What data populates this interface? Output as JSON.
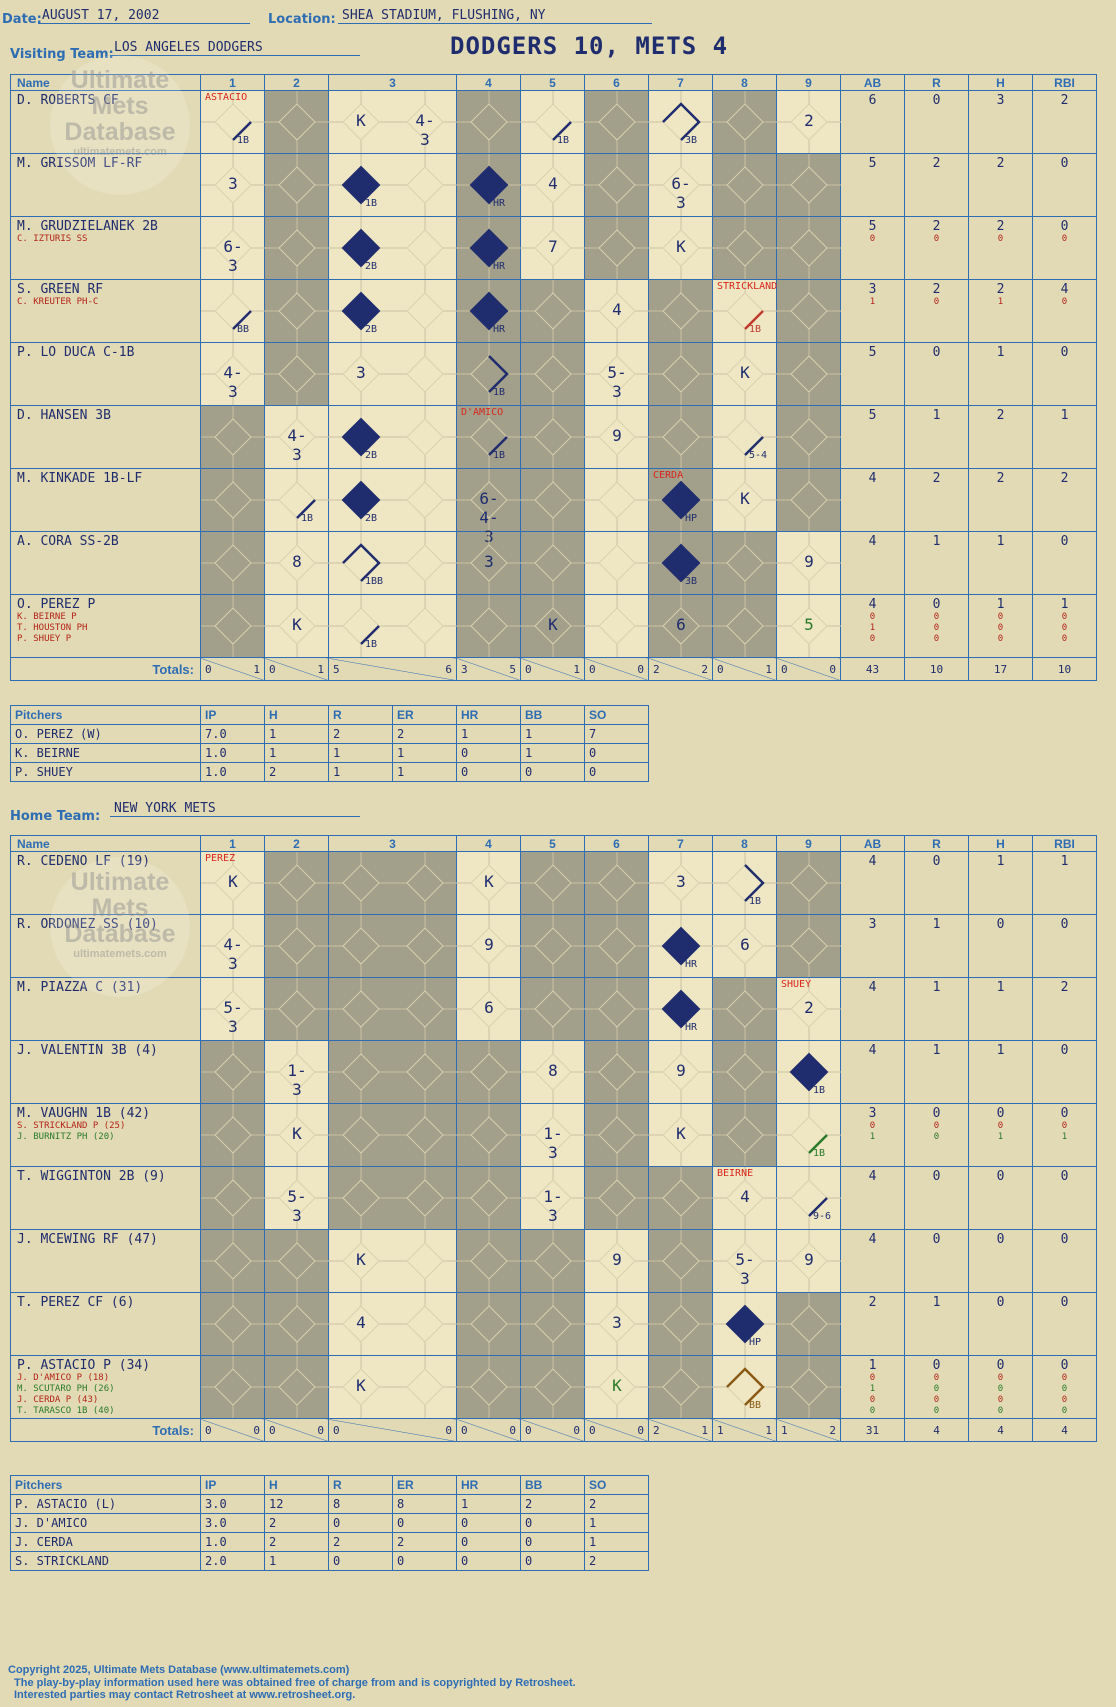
{
  "header": {
    "date_label": "Date:",
    "date": "AUGUST 17, 2002",
    "location_label": "Location:",
    "location": "SHEA STADIUM, FLUSHING, NY",
    "visiting_label": "Visiting Team:",
    "visiting_team": "LOS ANGELES DODGERS",
    "result": "DODGERS 10, METS 4",
    "home_label": "Home Team:",
    "home_team": "NEW YORK METS"
  },
  "columns": {
    "name": "Name",
    "innings": [
      "1",
      "2",
      "3",
      "4",
      "5",
      "6",
      "7",
      "8",
      "9"
    ],
    "stats": [
      "AB",
      "R",
      "H",
      "RBI"
    ],
    "totals_label": "Totals:",
    "r_label": "R",
    "h_label": "H"
  },
  "watermark": {
    "line1": "Ultimate",
    "line2": "Mets",
    "line3": "Database",
    "url": "ultimatemets.com"
  },
  "visitors": {
    "rows": [
      {
        "name": "D. ROBERTS CF",
        "subs": [],
        "ab": "6",
        "r": "0",
        "h": "3",
        "rbi": "2",
        "sub_stats": []
      },
      {
        "name": "M. GRISSOM LF-RF",
        "subs": [],
        "ab": "5",
        "r": "2",
        "h": "2",
        "rbi": "0",
        "sub_stats": []
      },
      {
        "name": "M. GRUDZIELANEK 2B",
        "subs": [
          "C. IZTURIS SS"
        ],
        "ab": "5",
        "r": "2",
        "h": "2",
        "rbi": "0",
        "sub_stats": [
          [
            "0",
            "0",
            "0",
            "0"
          ]
        ]
      },
      {
        "name": "S. GREEN RF",
        "subs": [
          "C. KREUTER PH-C"
        ],
        "ab": "3",
        "r": "2",
        "h": "2",
        "rbi": "4",
        "sub_stats": [
          [
            "1",
            "0",
            "1",
            "0"
          ]
        ]
      },
      {
        "name": "P. LO DUCA C-1B",
        "subs": [],
        "ab": "5",
        "r": "0",
        "h": "1",
        "rbi": "0",
        "sub_stats": []
      },
      {
        "name": "D. HANSEN 3B",
        "subs": [],
        "ab": "5",
        "r": "1",
        "h": "2",
        "rbi": "1",
        "sub_stats": []
      },
      {
        "name": "M. KINKADE 1B-LF",
        "subs": [],
        "ab": "4",
        "r": "2",
        "h": "2",
        "rbi": "2",
        "sub_stats": []
      },
      {
        "name": "A. CORA SS-2B",
        "subs": [],
        "ab": "4",
        "r": "1",
        "h": "1",
        "rbi": "0",
        "sub_stats": []
      },
      {
        "name": "O. PEREZ P",
        "subs": [
          "K. BEIRNE P",
          "T. HOUSTON PH",
          "P. SHUEY P"
        ],
        "ab": "4",
        "r": "0",
        "h": "1",
        "rbi": "1",
        "sub_stats": [
          [
            "0",
            "0",
            "0",
            "0"
          ],
          [
            "1",
            "0",
            "0",
            "0"
          ],
          [
            "0",
            "0",
            "0",
            "0"
          ]
        ]
      }
    ],
    "totals": {
      "innings": [
        [
          "0",
          "1"
        ],
        [
          "0",
          "1"
        ],
        [
          "5",
          "6"
        ],
        [
          "3",
          "5"
        ],
        [
          "0",
          "1"
        ],
        [
          "0",
          "0"
        ],
        [
          "2",
          "2"
        ],
        [
          "0",
          "1"
        ],
        [
          "0",
          "0"
        ]
      ],
      "ab": "43",
      "r": "10",
      "h": "17",
      "rbi": "10"
    },
    "pitchers_header": [
      "Pitchers",
      "IP",
      "H",
      "R",
      "ER",
      "HR",
      "BB",
      "SO"
    ],
    "pitchers": [
      [
        "O. PEREZ (W)",
        "7.0",
        "1",
        "2",
        "2",
        "1",
        "1",
        "7"
      ],
      [
        "K. BEIRNE",
        "1.0",
        "1",
        "1",
        "1",
        "0",
        "1",
        "0"
      ],
      [
        "P. SHUEY",
        "1.0",
        "2",
        "1",
        "1",
        "0",
        "0",
        "0"
      ]
    ]
  },
  "home": {
    "rows": [
      {
        "name": "R. CEDENO LF (19)",
        "subs": [],
        "ab": "4",
        "r": "0",
        "h": "1",
        "rbi": "1",
        "sub_stats": []
      },
      {
        "name": "R. ORDONEZ SS (10)",
        "subs": [],
        "ab": "3",
        "r": "1",
        "h": "0",
        "rbi": "0",
        "sub_stats": []
      },
      {
        "name": "M. PIAZZA C (31)",
        "subs": [],
        "ab": "4",
        "r": "1",
        "h": "1",
        "rbi": "2",
        "sub_stats": []
      },
      {
        "name": "J. VALENTIN 3B (4)",
        "subs": [],
        "ab": "4",
        "r": "1",
        "h": "1",
        "rbi": "0",
        "sub_stats": []
      },
      {
        "name": "M. VAUGHN 1B (42)",
        "subs": [
          "S. STRICKLAND P (25)",
          "J. BURNITZ PH (20)"
        ],
        "ab": "3",
        "r": "0",
        "h": "0",
        "rbi": "0",
        "sub_stats": [
          [
            "0",
            "0",
            "0",
            "0"
          ],
          [
            "1",
            "0",
            "1",
            "1"
          ]
        ]
      },
      {
        "name": "T. WIGGINTON 2B (9)",
        "subs": [],
        "ab": "4",
        "r": "0",
        "h": "0",
        "rbi": "0",
        "sub_stats": []
      },
      {
        "name": "J. MCEWING RF (47)",
        "subs": [],
        "ab": "4",
        "r": "0",
        "h": "0",
        "rbi": "0",
        "sub_stats": []
      },
      {
        "name": "T. PEREZ CF (6)",
        "subs": [],
        "ab": "2",
        "r": "1",
        "h": "0",
        "rbi": "0",
        "sub_stats": []
      },
      {
        "name": "P. ASTACIO P (34)",
        "subs": [
          "J. D'AMICO P (18)",
          "M. SCUTARO PH (26)",
          "J. CERDA P (43)",
          "T. TARASCO 1B (40)"
        ],
        "ab": "1",
        "r": "0",
        "h": "0",
        "rbi": "0",
        "sub_stats": [
          [
            "0",
            "0",
            "0",
            "0"
          ],
          [
            "1",
            "0",
            "0",
            "0"
          ],
          [
            "0",
            "0",
            "0",
            "0"
          ],
          [
            "0",
            "0",
            "0",
            "0"
          ]
        ]
      }
    ],
    "totals": {
      "innings": [
        [
          "0",
          "0"
        ],
        [
          "0",
          "0"
        ],
        [
          "0",
          "0"
        ],
        [
          "0",
          "0"
        ],
        [
          "0",
          "0"
        ],
        [
          "0",
          "0"
        ],
        [
          "2",
          "1"
        ],
        [
          "1",
          "1"
        ],
        [
          "1",
          "2"
        ]
      ],
      "ab": "31",
      "r": "4",
      "h": "4",
      "rbi": "4"
    },
    "pitchers_header": [
      "Pitchers",
      "IP",
      "H",
      "R",
      "ER",
      "HR",
      "BB",
      "SO"
    ],
    "pitchers": [
      [
        "P. ASTACIO (L)",
        "3.0",
        "12",
        "8",
        "8",
        "1",
        "2",
        "2"
      ],
      [
        "J. D'AMICO",
        "3.0",
        "2",
        "0",
        "0",
        "0",
        "0",
        "1"
      ],
      [
        "J. CERDA",
        "1.0",
        "2",
        "2",
        "2",
        "0",
        "0",
        "1"
      ],
      [
        "S. STRICKLAND",
        "2.0",
        "1",
        "0",
        "0",
        "0",
        "0",
        "2"
      ]
    ]
  },
  "visitor_plays": [
    {
      "r": 0,
      "i": 1,
      "t": "1B",
      "path": 1,
      "mark": "ASTACIO"
    },
    {
      "r": 0,
      "i": 3,
      "t": "K"
    },
    {
      "r": 0,
      "i": 3,
      "t": "4-3",
      "col": "3b"
    },
    {
      "r": 0,
      "i": 5,
      "t": "1B",
      "path": 1
    },
    {
      "r": 0,
      "i": 7,
      "t": "3B",
      "path": 3
    },
    {
      "r": 0,
      "i": 9,
      "t": "2"
    },
    {
      "r": 1,
      "i": 1,
      "t": "3"
    },
    {
      "r": 1,
      "i": 3,
      "t": "1B",
      "run": 1
    },
    {
      "r": 1,
      "i": 4,
      "t": "HR",
      "run": 1
    },
    {
      "r": 1,
      "i": 5,
      "t": "4"
    },
    {
      "r": 1,
      "i": 7,
      "t": "6-3"
    },
    {
      "r": 2,
      "i": 1,
      "t": "6-3"
    },
    {
      "r": 2,
      "i": 3,
      "t": "2B",
      "run": 1
    },
    {
      "r": 2,
      "i": 4,
      "t": "HR",
      "run": 1
    },
    {
      "r": 2,
      "i": 5,
      "t": "7"
    },
    {
      "r": 2,
      "i": 7,
      "t": "K"
    },
    {
      "r": 3,
      "i": 1,
      "t": "BB",
      "path": 1
    },
    {
      "r": 3,
      "i": 3,
      "t": "2B",
      "run": 1
    },
    {
      "r": 3,
      "i": 4,
      "t": "HR",
      "run": 1
    },
    {
      "r": 3,
      "i": 6,
      "t": "4"
    },
    {
      "r": 3,
      "i": 8,
      "t": "1B",
      "path": 1,
      "red": true,
      "mark": "STRICKLAND"
    },
    {
      "r": 4,
      "i": 1,
      "t": "4-3"
    },
    {
      "r": 4,
      "i": 3,
      "t": "3"
    },
    {
      "r": 4,
      "i": 4,
      "t": "1B",
      "path": 2
    },
    {
      "r": 4,
      "i": 6,
      "t": "5-3"
    },
    {
      "r": 4,
      "i": 8,
      "t": "K"
    },
    {
      "r": 5,
      "i": 2,
      "t": "4-3"
    },
    {
      "r": 5,
      "i": 3,
      "t": "2B",
      "run": 1
    },
    {
      "r": 5,
      "i": 4,
      "t": "1B",
      "path": 1,
      "mark": "D'AMICO"
    },
    {
      "r": 5,
      "i": 6,
      "t": "9"
    },
    {
      "r": 5,
      "i": 8,
      "t": "5-4",
      "path": 1
    },
    {
      "r": 6,
      "i": 2,
      "t": "1B",
      "path": 1
    },
    {
      "r": 6,
      "i": 3,
      "t": "2B",
      "run": 1
    },
    {
      "r": 6,
      "i": 4,
      "t": "6-4-3"
    },
    {
      "r": 6,
      "i": 7,
      "t": "HP",
      "run": 1,
      "mark": "CERDA"
    },
    {
      "r": 6,
      "i": 8,
      "t": "K"
    },
    {
      "r": 7,
      "i": 2,
      "t": "8"
    },
    {
      "r": 7,
      "i": 3,
      "t": "1BB",
      "path": 3
    },
    {
      "r": 7,
      "i": 4,
      "t": "3"
    },
    {
      "r": 7,
      "i": 7,
      "t": "3B",
      "run": 1
    },
    {
      "r": 7,
      "i": 9,
      "t": "9"
    },
    {
      "r": 8,
      "i": 2,
      "t": "K"
    },
    {
      "r": 8,
      "i": 3,
      "t": "1B",
      "path": 1
    },
    {
      "r": 8,
      "i": 5,
      "t": "K"
    },
    {
      "r": 8,
      "i": 7,
      "t": "6"
    },
    {
      "r": 8,
      "i": 9,
      "t": "5",
      "green": true
    }
  ],
  "home_plays": [
    {
      "r": 0,
      "i": 1,
      "t": "K",
      "mark": "PEREZ"
    },
    {
      "r": 0,
      "i": 4,
      "t": "K"
    },
    {
      "r": 0,
      "i": 7,
      "t": "3"
    },
    {
      "r": 0,
      "i": 8,
      "t": "1B",
      "path": 2
    },
    {
      "r": 1,
      "i": 1,
      "t": "4-3"
    },
    {
      "r": 1,
      "i": 4,
      "t": "9"
    },
    {
      "r": 1,
      "i": 7,
      "t": "HR",
      "run": 1
    },
    {
      "r": 1,
      "i": 8,
      "t": "6"
    },
    {
      "r": 2,
      "i": 1,
      "t": "5-3"
    },
    {
      "r": 2,
      "i": 4,
      "t": "6"
    },
    {
      "r": 2,
      "i": 7,
      "t": "HR",
      "run": 1
    },
    {
      "r": 2,
      "i": 9,
      "t": "2",
      "mark": "SHUEY"
    },
    {
      "r": 3,
      "i": 2,
      "t": "1-3"
    },
    {
      "r": 3,
      "i": 5,
      "t": "8"
    },
    {
      "r": 3,
      "i": 7,
      "t": "9"
    },
    {
      "r": 3,
      "i": 9,
      "t": "1B",
      "run": 1
    },
    {
      "r": 4,
      "i": 2,
      "t": "K"
    },
    {
      "r": 4,
      "i": 5,
      "t": "1-3"
    },
    {
      "r": 4,
      "i": 7,
      "t": "K"
    },
    {
      "r": 4,
      "i": 9,
      "t": "1B",
      "path": 1,
      "green": true
    },
    {
      "r": 5,
      "i": 2,
      "t": "5-3"
    },
    {
      "r": 5,
      "i": 5,
      "t": "1-3"
    },
    {
      "r": 5,
      "i": 8,
      "t": "4",
      "mark": "BEIRNE"
    },
    {
      "r": 5,
      "i": 9,
      "t": "9-6",
      "path": 1
    },
    {
      "r": 6,
      "i": 3,
      "t": "K"
    },
    {
      "r": 6,
      "i": 6,
      "t": "9"
    },
    {
      "r": 6,
      "i": 8,
      "t": "5-3"
    },
    {
      "r": 6,
      "i": 9,
      "t": "9"
    },
    {
      "r": 7,
      "i": 3,
      "t": "4"
    },
    {
      "r": 7,
      "i": 6,
      "t": "3"
    },
    {
      "r": 7,
      "i": 8,
      "t": "HP",
      "run": 1
    },
    {
      "r": 8,
      "i": 3,
      "t": "K"
    },
    {
      "r": 8,
      "i": 6,
      "t": "K",
      "green": true
    },
    {
      "r": 8,
      "i": 8,
      "t": "BB",
      "path": 3,
      "brown": true
    }
  ],
  "visitor_dark": [
    [
      0,
      1,
      0,
      1,
      0,
      1,
      0,
      1,
      0
    ],
    [
      0,
      1,
      0,
      1,
      0,
      1,
      0,
      1,
      1
    ],
    [
      0,
      1,
      0,
      1,
      0,
      1,
      0,
      1,
      1
    ],
    [
      0,
      1,
      0,
      1,
      1,
      0,
      1,
      0,
      1
    ],
    [
      0,
      1,
      0,
      1,
      1,
      0,
      1,
      0,
      1
    ],
    [
      1,
      0,
      0,
      1,
      1,
      0,
      1,
      0,
      1
    ],
    [
      1,
      0,
      0,
      1,
      1,
      0,
      1,
      0,
      1
    ],
    [
      1,
      0,
      0,
      1,
      1,
      0,
      1,
      1,
      0
    ],
    [
      1,
      0,
      0,
      1,
      1,
      0,
      1,
      1,
      0
    ]
  ],
  "home_dark": [
    [
      0,
      1,
      1,
      0,
      1,
      1,
      0,
      0,
      1
    ],
    [
      0,
      1,
      1,
      0,
      1,
      1,
      0,
      0,
      1
    ],
    [
      0,
      1,
      1,
      0,
      1,
      1,
      0,
      1,
      0
    ],
    [
      1,
      0,
      1,
      1,
      0,
      1,
      0,
      1,
      0
    ],
    [
      1,
      0,
      1,
      1,
      0,
      1,
      0,
      1,
      0
    ],
    [
      1,
      0,
      1,
      1,
      0,
      1,
      1,
      0,
      0
    ],
    [
      1,
      1,
      0,
      1,
      1,
      0,
      1,
      0,
      0
    ],
    [
      1,
      1,
      0,
      1,
      1,
      0,
      1,
      0,
      1
    ],
    [
      1,
      1,
      0,
      1,
      1,
      0,
      1,
      0,
      1
    ]
  ],
  "footer": {
    "line1": "Copyright 2025, Ultimate Mets Database (www.ultimatemets.com)",
    "line2": "The play-by-play information used here was obtained free of charge from and is copyrighted by Retrosheet.",
    "line3": "Interested parties may contact Retrosheet at www.retrosheet.org."
  }
}
